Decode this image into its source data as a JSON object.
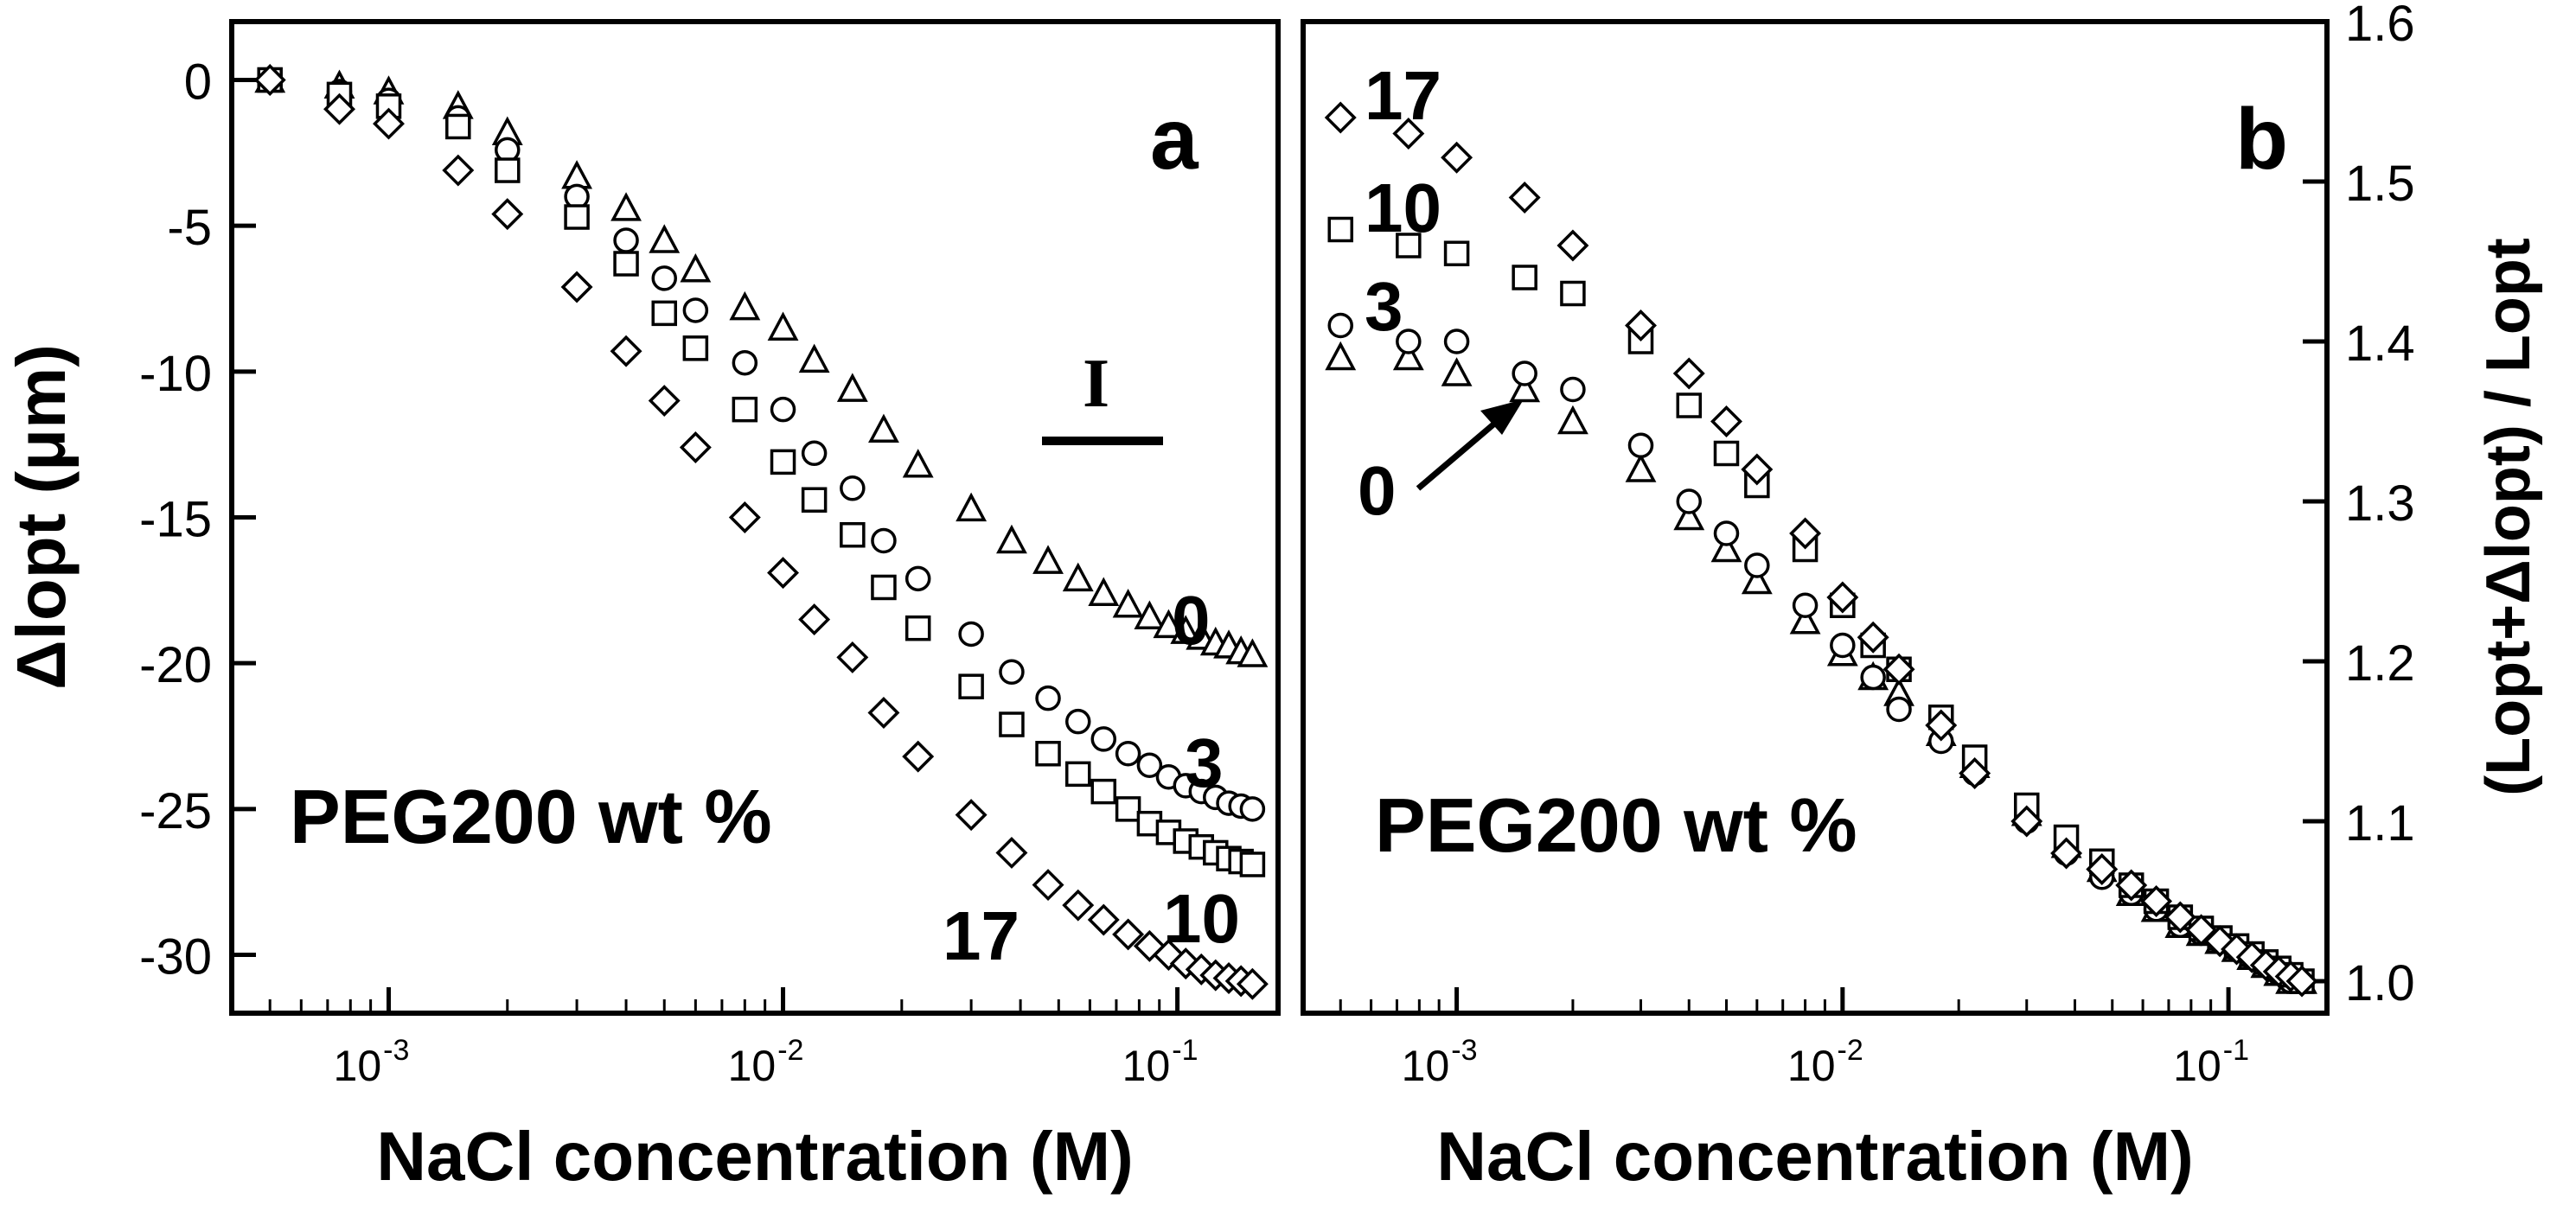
{
  "chart_data": [
    {
      "panel_label": "a",
      "type": "scatter",
      "xlabel": "NaCl concentration (M)",
      "ylabel": "Δlopt (μm)",
      "xscale": "log",
      "xlim": [
        0.0004,
        0.18
      ],
      "ylim": [
        -32,
        2
      ],
      "yticks": [
        "0",
        "-5",
        "-10",
        "-15",
        "-20",
        "-25",
        "-30"
      ],
      "xticks": [
        {
          "base": "10",
          "exp": "-3"
        },
        {
          "base": "10",
          "exp": "-2"
        },
        {
          "base": "10",
          "exp": "-1"
        }
      ],
      "annotation": "PEG200 wt %",
      "curve_labels": [
        "0",
        "3",
        "10",
        "17"
      ],
      "error_bar_label": "I",
      "x": [
        0.0005,
        0.00075,
        0.001,
        0.0015,
        0.002,
        0.003,
        0.004,
        0.005,
        0.006,
        0.008,
        0.01,
        0.012,
        0.015,
        0.018,
        0.022,
        0.03,
        0.038,
        0.047,
        0.056,
        0.065,
        0.075,
        0.085,
        0.095,
        0.105,
        0.115,
        0.125,
        0.135,
        0.145,
        0.155
      ],
      "series": [
        {
          "name": "0",
          "marker": "triangle",
          "values": [
            0,
            -0.2,
            -0.4,
            -0.9,
            -1.8,
            -3.3,
            -4.4,
            -5.5,
            -6.5,
            -7.8,
            -8.5,
            -9.6,
            -10.6,
            -12,
            -13.2,
            -14.7,
            -15.8,
            -16.5,
            -17.1,
            -17.6,
            -18.0,
            -18.4,
            -18.7,
            -18.9,
            -19.1,
            -19.3,
            -19.4,
            -19.6,
            -19.7
          ]
        },
        {
          "name": "3",
          "marker": "circle",
          "values": [
            0,
            -0.4,
            -0.7,
            -1.3,
            -2.4,
            -4.0,
            -5.5,
            -6.8,
            -7.9,
            -9.7,
            -11.3,
            -12.8,
            -14.0,
            -15.8,
            -17.1,
            -19.0,
            -20.3,
            -21.2,
            -22.0,
            -22.6,
            -23.1,
            -23.5,
            -23.9,
            -24.2,
            -24.4,
            -24.6,
            -24.8,
            -24.9,
            -25.0
          ]
        },
        {
          "name": "10",
          "marker": "square",
          "values": [
            0,
            -0.5,
            -0.9,
            -1.6,
            -3.1,
            -4.7,
            -6.3,
            -8.0,
            -9.2,
            -11.3,
            -13.1,
            -14.4,
            -15.6,
            -17.4,
            -18.8,
            -20.8,
            -22.1,
            -23.1,
            -23.8,
            -24.4,
            -25.0,
            -25.5,
            -25.8,
            -26.1,
            -26.3,
            -26.5,
            -26.7,
            -26.8,
            -26.9
          ]
        },
        {
          "name": "17",
          "marker": "diamond",
          "values": [
            0,
            -1.0,
            -1.5,
            -3.1,
            -4.6,
            -7.1,
            -9.3,
            -11.0,
            -12.6,
            -15.0,
            -16.9,
            -18.5,
            -19.8,
            -21.7,
            -23.2,
            -25.2,
            -26.5,
            -27.6,
            -28.3,
            -28.8,
            -29.3,
            -29.7,
            -30.0,
            -30.3,
            -30.5,
            -30.7,
            -30.8,
            -30.9,
            -31.0
          ]
        }
      ]
    },
    {
      "panel_label": "b",
      "type": "scatter",
      "xlabel": "NaCl concentration (M)",
      "ylabel": "(Lopt+Δlopt) / Lopt",
      "xscale": "log",
      "xlim": [
        0.0004,
        0.18
      ],
      "ylim": [
        0.98,
        1.6
      ],
      "yticks": [
        "1.0",
        "1.1",
        "1.2",
        "1.3",
        "1.4",
        "1.5",
        "1.6"
      ],
      "xticks": [
        {
          "base": "10",
          "exp": "-3"
        },
        {
          "base": "10",
          "exp": "-2"
        },
        {
          "base": "10",
          "exp": "-1"
        }
      ],
      "annotation": "PEG200 wt %",
      "curve_labels": [
        "17",
        "10",
        "3",
        "0"
      ],
      "x": [
        0.0005,
        0.00075,
        0.001,
        0.0015,
        0.002,
        0.003,
        0.004,
        0.005,
        0.006,
        0.008,
        0.01,
        0.012,
        0.014,
        0.018,
        0.022,
        0.03,
        0.038,
        0.047,
        0.056,
        0.065,
        0.075,
        0.085,
        0.095,
        0.105,
        0.115,
        0.125,
        0.135,
        0.145,
        0.155
      ],
      "series": [
        {
          "name": "0",
          "marker": "triangle",
          "values": [
            1.39,
            1.39,
            1.38,
            1.37,
            1.35,
            1.32,
            1.29,
            1.27,
            1.25,
            1.225,
            1.205,
            1.19,
            1.18,
            1.155,
            1.135,
            1.105,
            1.085,
            1.07,
            1.055,
            1.045,
            1.035,
            1.03,
            1.025,
            1.02,
            1.015,
            1.01,
            1.005,
            1.0,
            1.0
          ]
        },
        {
          "name": "3",
          "marker": "circle",
          "values": [
            1.41,
            1.4,
            1.4,
            1.38,
            1.37,
            1.335,
            1.3,
            1.28,
            1.26,
            1.235,
            1.21,
            1.19,
            1.17,
            1.15,
            1.13,
            1.1,
            1.08,
            1.065,
            1.055,
            1.045,
            1.035,
            1.03,
            1.025,
            1.02,
            1.015,
            1.01,
            1.005,
            1.0,
            1.0
          ]
        },
        {
          "name": "10",
          "marker": "square",
          "values": [
            1.47,
            1.46,
            1.455,
            1.44,
            1.43,
            1.4,
            1.36,
            1.33,
            1.31,
            1.27,
            1.235,
            1.21,
            1.195,
            1.165,
            1.14,
            1.11,
            1.09,
            1.075,
            1.06,
            1.05,
            1.04,
            1.033,
            1.027,
            1.022,
            1.017,
            1.012,
            1.008,
            1.004,
            1.0
          ]
        },
        {
          "name": "17",
          "marker": "diamond",
          "values": [
            1.54,
            1.53,
            1.515,
            1.49,
            1.46,
            1.41,
            1.38,
            1.35,
            1.32,
            1.28,
            1.24,
            1.215,
            1.195,
            1.16,
            1.13,
            1.1,
            1.08,
            1.07,
            1.06,
            1.05,
            1.04,
            1.032,
            1.025,
            1.02,
            1.015,
            1.01,
            1.006,
            1.003,
            1.0
          ]
        }
      ]
    }
  ]
}
